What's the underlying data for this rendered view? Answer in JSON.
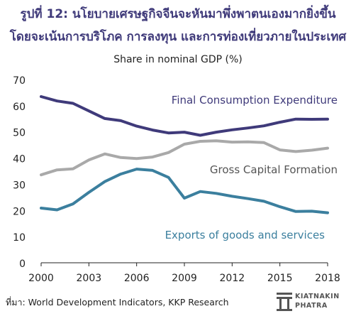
{
  "header": {
    "title_line1": "รูปที่ 12: นโยบายเศรษฐกิจจีนจะหันมาพึ่งพาตนเองมากยิ่งขึ้น",
    "title_line2": "โดยจะเน้นการบริโภค การลงทุน และการท่องเที่ยวภายในประเทศ",
    "subtitle": "Share in nominal GDP (%)"
  },
  "footer": {
    "source": "ที่มา: World Development Indicators, KKP Research",
    "logo_line1": "KIATNAKIN",
    "logo_line2": "PHATRA"
  },
  "chart_data": {
    "type": "line",
    "x": [
      2000,
      2001,
      2002,
      2003,
      2004,
      2005,
      2006,
      2007,
      2008,
      2009,
      2010,
      2011,
      2012,
      2013,
      2014,
      2015,
      2016,
      2017,
      2018
    ],
    "x_tick_labels": [
      "2000",
      "2003",
      "2006",
      "2009",
      "2012",
      "2015",
      "2018"
    ],
    "x_ticks": [
      2000,
      2003,
      2006,
      2009,
      2012,
      2015,
      2018
    ],
    "y_ticks": [
      0,
      10,
      20,
      30,
      40,
      50,
      60,
      70
    ],
    "ylim": [
      0,
      70
    ],
    "xlim": [
      2000,
      2018
    ],
    "grid": false,
    "series": [
      {
        "name": "Final Consumption Expenditure",
        "color": "#3f3a7a",
        "values": [
          63.5,
          61.8,
          60.9,
          58.0,
          55.1,
          54.3,
          52.2,
          50.7,
          49.6,
          49.9,
          48.7,
          49.9,
          50.8,
          51.5,
          52.3,
          53.7,
          54.9,
          54.8,
          54.9
        ]
      },
      {
        "name": "Gross Capital Formation",
        "color": "#a9a9a9",
        "values": [
          33.6,
          35.5,
          35.9,
          39.3,
          41.6,
          40.2,
          39.8,
          40.4,
          42.1,
          45.3,
          46.4,
          46.6,
          46.1,
          46.2,
          45.9,
          43.1,
          42.5,
          43.0,
          43.8
        ]
      },
      {
        "name": "Exports of goods and services",
        "color": "#3b7f9e",
        "values": [
          20.9,
          20.2,
          22.5,
          26.9,
          31.0,
          33.9,
          35.8,
          35.3,
          32.6,
          24.7,
          27.2,
          26.5,
          25.4,
          24.5,
          23.5,
          21.4,
          19.6,
          19.7,
          19.1
        ]
      }
    ],
    "series_labels": [
      {
        "series": 0,
        "text": "Final Consumption Expenditure",
        "color": "#3f3a7a"
      },
      {
        "series": 1,
        "text": "Gross Capital Formation",
        "color": "#555555"
      },
      {
        "series": 2,
        "text": "Exports of goods and services",
        "color": "#3b7f9e"
      }
    ]
  }
}
